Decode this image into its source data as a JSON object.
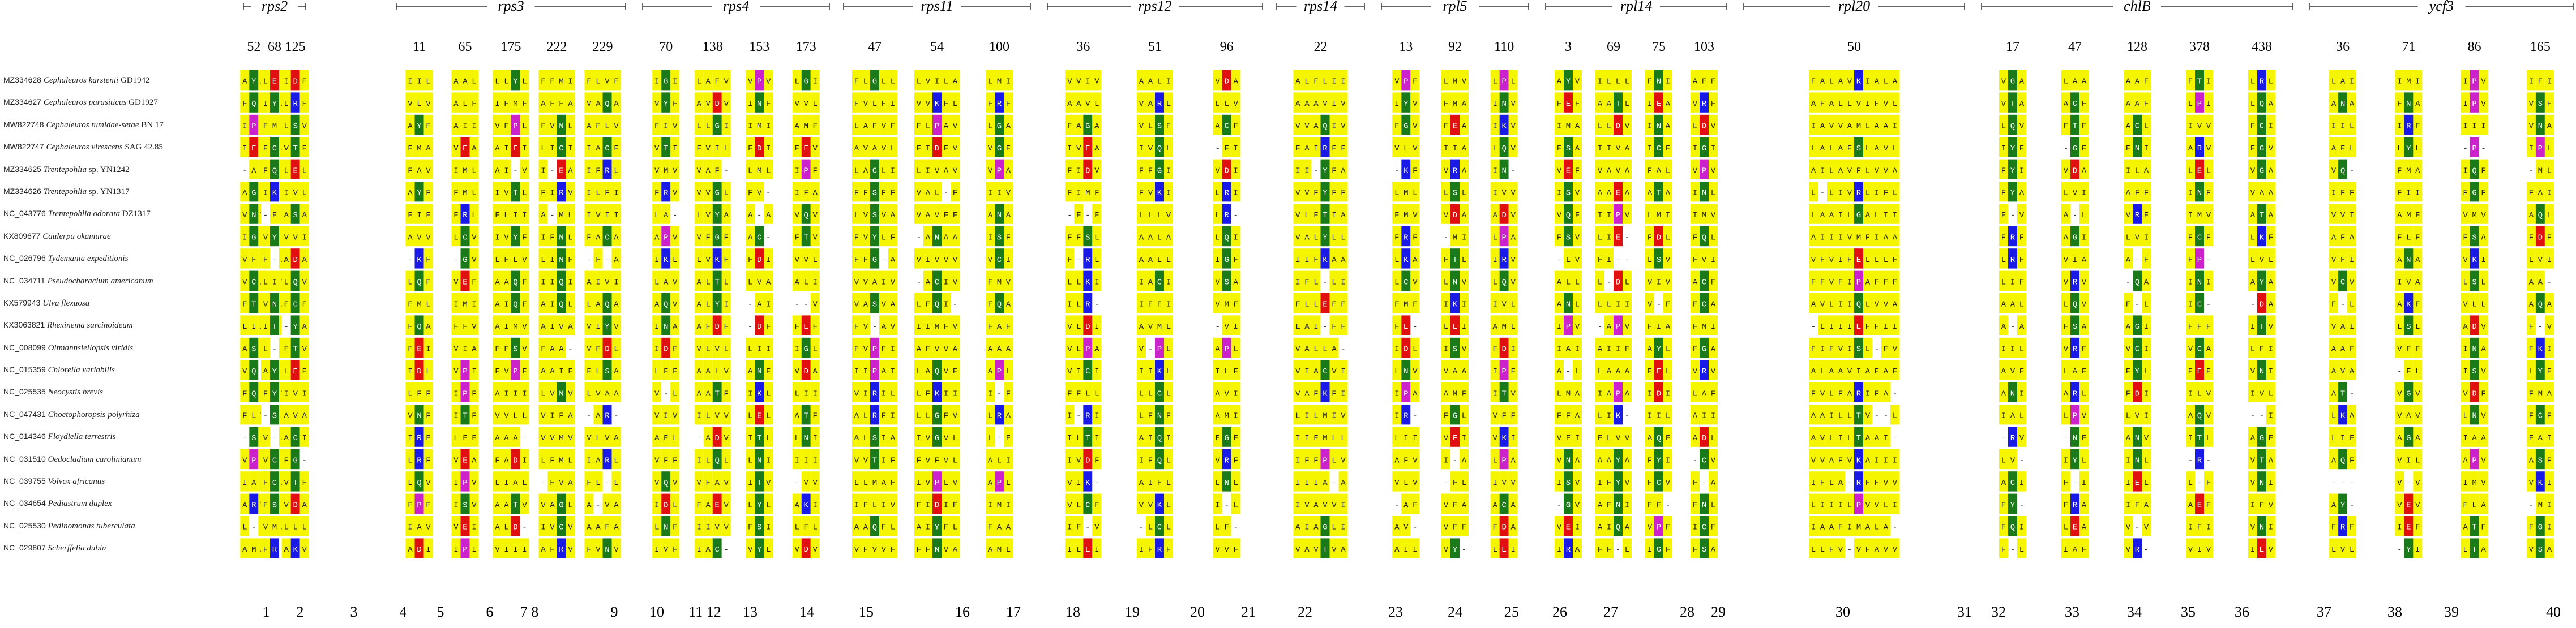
{
  "colors": {
    "A": "#f5f500",
    "V": "#f5f500",
    "L": "#f5f500",
    "I": "#f5f500",
    "M": "#f5f500",
    "F": "#f5f500",
    "G": "#1a7a1a",
    "S": "#1a7a1a",
    "T": "#1a7a1a",
    "C": "#1a7a1a",
    "N": "#1a7a1a",
    "Q": "#1a7a1a",
    "Y": "#1a7a1a",
    "K": "#1a1ae6",
    "R": "#1a1ae6",
    "H": "#1a1ae6",
    "D": "#e01010",
    "E": "#e01010",
    "P": "#cc22cc",
    "W": "#cc22cc",
    "gap": "#ffffff",
    "other": "#aaaaaa"
  },
  "genes": [
    {
      "name": "rps2",
      "positions": [
        "52",
        "68",
        "125"
      ]
    },
    {
      "name": "rps3",
      "positions": [
        "11",
        "65",
        "175",
        "222",
        "229"
      ]
    },
    {
      "name": "rps4",
      "positions": [
        "70",
        "138",
        "153",
        "173"
      ]
    },
    {
      "name": "rps11",
      "positions": [
        "47",
        "54",
        "100"
      ]
    },
    {
      "name": "rps12",
      "positions": [
        "36",
        "51",
        "96"
      ]
    },
    {
      "name": "rps14",
      "positions": [
        "22"
      ]
    },
    {
      "name": "rpl5",
      "positions": [
        "13",
        "92",
        "110"
      ]
    },
    {
      "name": "rpl14",
      "positions": [
        "3",
        "69",
        "75",
        "103"
      ]
    },
    {
      "name": "rpl20",
      "positions": [
        "50"
      ]
    },
    {
      "name": "chlB",
      "positions": [
        "17",
        "47",
        "128",
        "378",
        "438"
      ]
    },
    {
      "name": "ycf3",
      "positions": [
        "36",
        "71",
        "86",
        "165"
      ]
    }
  ],
  "site_numbers": [
    "1",
    "2",
    "3",
    "4",
    "5",
    "6",
    "7 8",
    "9",
    "10",
    "11 12",
    "13",
    "14",
    "15",
    "16",
    "17",
    "18",
    "19",
    "20",
    "21",
    "22",
    "23",
    "24",
    "25",
    "26",
    "27",
    "28",
    "29",
    "30",
    "31",
    "32",
    "33",
    "34",
    "35",
    "36",
    "37",
    "38",
    "39",
    "40"
  ],
  "taxa": [
    {
      "accession": "MZ334628",
      "species": "Cephaleuros karstenii",
      "strain": "GD1942"
    },
    {
      "accession": "MZ334627",
      "species": "Cephaleuros parasiticus",
      "strain": "GD1927"
    },
    {
      "accession": "MW822748",
      "species": "Cephaleuros tumidae-setae",
      "strain": "BN 17"
    },
    {
      "accession": "MW822747",
      "species": "Cephaleuros virescens",
      "strain": "SAG 42.85"
    },
    {
      "accession": "MZ334625",
      "species": "Trentepohlia",
      "strain": "sp. YN1242"
    },
    {
      "accession": "MZ334626",
      "species": "Trentepohlia",
      "strain": "sp. YN1317"
    },
    {
      "accession": "NC_043776",
      "species": "Trentepohlia odorata",
      "strain": "DZ1317"
    },
    {
      "accession": "KX809677",
      "species": "Caulerpa okamurae",
      "strain": ""
    },
    {
      "accession": "NC_026796",
      "species": "Tydemania expeditionis",
      "strain": ""
    },
    {
      "accession": "NC_034711",
      "species": "Pseudocharacium americanum",
      "strain": ""
    },
    {
      "accession": "KX579943",
      "species": "Ulva flexuosa",
      "strain": ""
    },
    {
      "accession": "KX3063821",
      "species": "Rhexinema sarcinoideum",
      "strain": ""
    },
    {
      "accession": "NC_008099",
      "species": "Oltmannsiellopsis viridis",
      "strain": ""
    },
    {
      "accession": "NC_015359",
      "species": "Chlorella variabilis",
      "strain": ""
    },
    {
      "accession": "NC_025535",
      "species": "Neocystis brevis",
      "strain": ""
    },
    {
      "accession": "NC_047431",
      "species": "Choetophoropsis polyrhiza",
      "strain": ""
    },
    {
      "accession": "NC_014346",
      "species": "Floydiella terrestris",
      "strain": ""
    },
    {
      "accession": "NC_031510",
      "species": "Oedocladium carolinianum",
      "strain": ""
    },
    {
      "accession": "NC_039755",
      "species": "Volvox africanus",
      "strain": ""
    },
    {
      "accession": "NC_034654",
      "species": "Pediastrum duplex",
      "strain": ""
    },
    {
      "accession": "NC_025530",
      "species": "Pedinomonas tuberculata",
      "strain": ""
    },
    {
      "accession": "NC_029807",
      "species": "Scherffelia dubia",
      "strain": ""
    }
  ]
}
